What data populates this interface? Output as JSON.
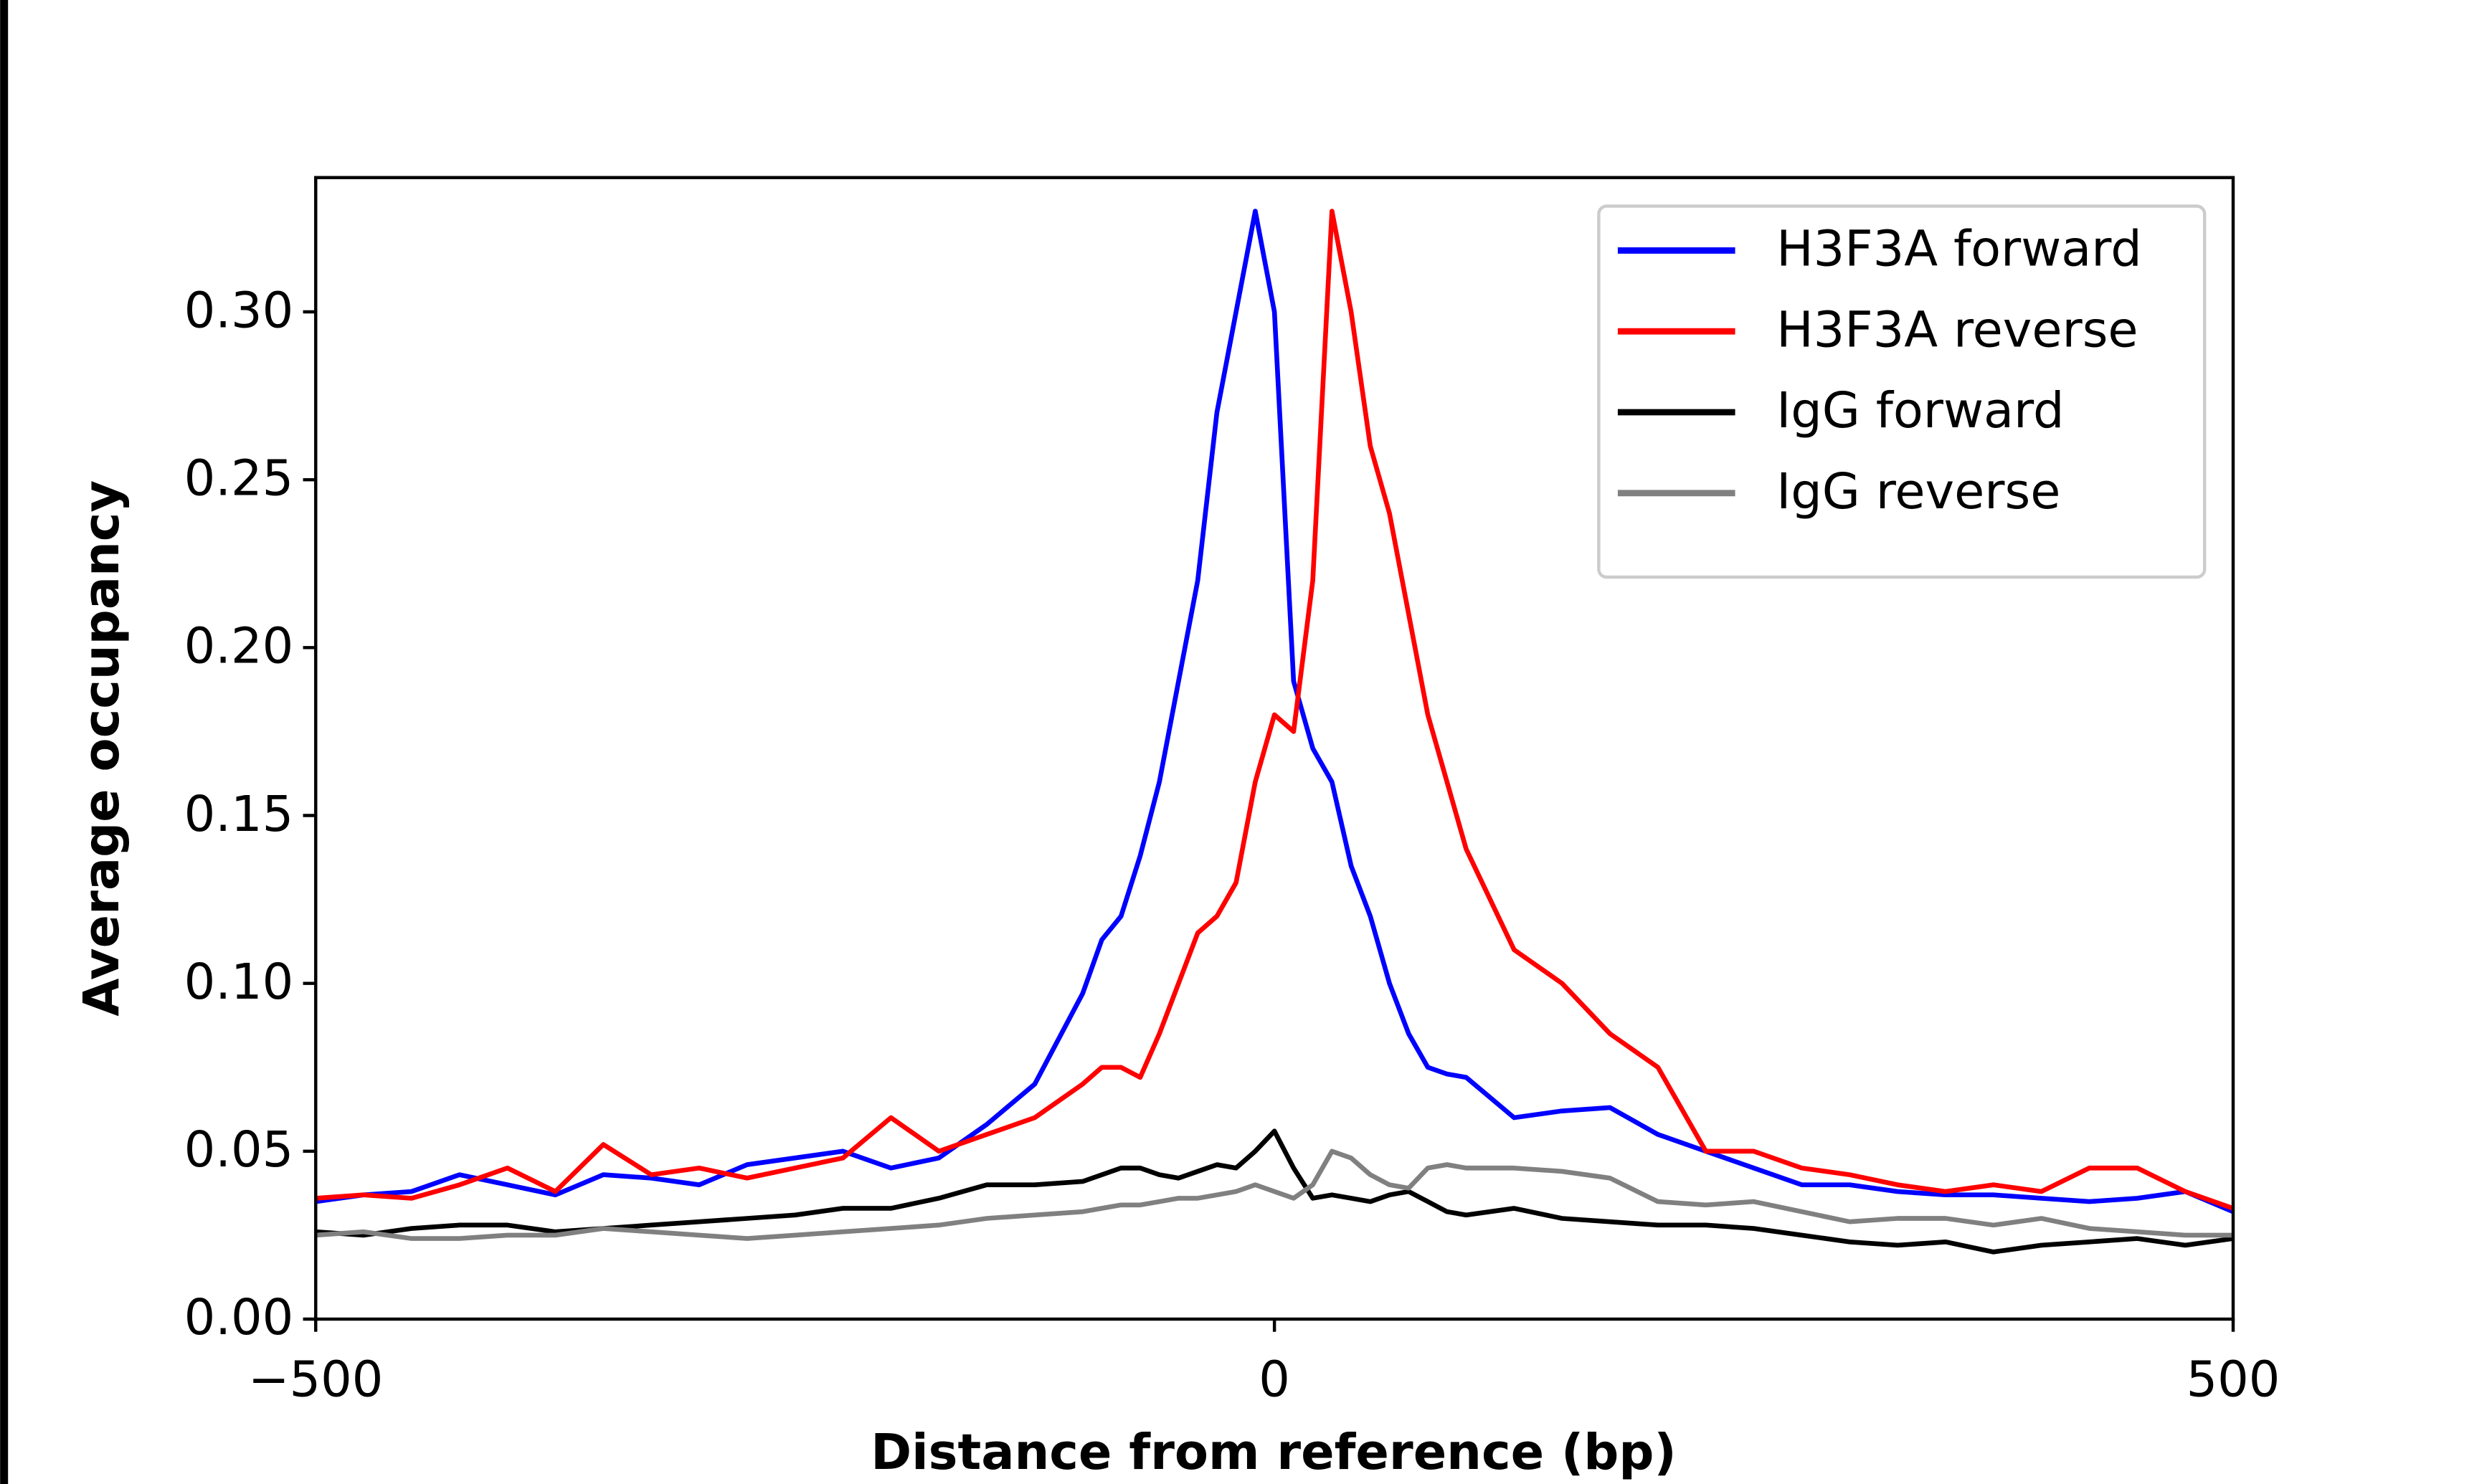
{
  "chart_data": {
    "type": "line",
    "xlabel": "Distance from reference (bp)",
    "ylabel": "Average occupancy",
    "x": [
      -500,
      -475,
      -450,
      -425,
      -400,
      -375,
      -350,
      -325,
      -300,
      -275,
      -250,
      -225,
      -200,
      -175,
      -150,
      -125,
      -100,
      -90,
      -80,
      -70,
      -60,
      -50,
      -40,
      -30,
      -20,
      -10,
      0,
      10,
      20,
      30,
      40,
      50,
      60,
      70,
      80,
      90,
      100,
      125,
      150,
      175,
      200,
      225,
      250,
      275,
      300,
      325,
      350,
      375,
      400,
      425,
      450,
      475,
      500
    ],
    "series": [
      {
        "name": "H3F3A forward",
        "color": "#0000ff",
        "values": [
          0.035,
          0.037,
          0.038,
          0.043,
          0.04,
          0.037,
          0.043,
          0.042,
          0.04,
          0.046,
          0.048,
          0.05,
          0.045,
          0.048,
          0.058,
          0.07,
          0.097,
          0.113,
          0.12,
          0.138,
          0.16,
          0.19,
          0.22,
          0.27,
          0.3,
          0.33,
          0.3,
          0.19,
          0.17,
          0.16,
          0.135,
          0.12,
          0.1,
          0.085,
          0.075,
          0.073,
          0.072,
          0.06,
          0.062,
          0.063,
          0.055,
          0.05,
          0.045,
          0.04,
          0.04,
          0.038,
          0.037,
          0.037,
          0.036,
          0.035,
          0.036,
          0.038,
          0.032
        ]
      },
      {
        "name": "H3F3A reverse",
        "color": "#ff0000",
        "values": [
          0.036,
          0.037,
          0.036,
          0.04,
          0.045,
          0.038,
          0.052,
          0.043,
          0.045,
          0.042,
          0.045,
          0.048,
          0.06,
          0.05,
          0.055,
          0.06,
          0.07,
          0.075,
          0.075,
          0.072,
          0.085,
          0.1,
          0.115,
          0.12,
          0.13,
          0.16,
          0.18,
          0.175,
          0.22,
          0.33,
          0.3,
          0.26,
          0.24,
          0.21,
          0.18,
          0.16,
          0.14,
          0.11,
          0.1,
          0.085,
          0.075,
          0.05,
          0.05,
          0.045,
          0.043,
          0.04,
          0.038,
          0.04,
          0.038,
          0.045,
          0.045,
          0.038,
          0.033
        ]
      },
      {
        "name": "IgG forward",
        "color": "#000000",
        "values": [
          0.026,
          0.025,
          0.027,
          0.028,
          0.028,
          0.026,
          0.027,
          0.028,
          0.029,
          0.03,
          0.031,
          0.033,
          0.033,
          0.036,
          0.04,
          0.04,
          0.041,
          0.043,
          0.045,
          0.045,
          0.043,
          0.042,
          0.044,
          0.046,
          0.045,
          0.05,
          0.056,
          0.045,
          0.036,
          0.037,
          0.036,
          0.035,
          0.037,
          0.038,
          0.035,
          0.032,
          0.031,
          0.033,
          0.03,
          0.029,
          0.028,
          0.028,
          0.027,
          0.025,
          0.023,
          0.022,
          0.023,
          0.02,
          0.022,
          0.023,
          0.024,
          0.022,
          0.024
        ]
      },
      {
        "name": "IgG reverse",
        "color": "#808080",
        "values": [
          0.025,
          0.026,
          0.024,
          0.024,
          0.025,
          0.025,
          0.027,
          0.026,
          0.025,
          0.024,
          0.025,
          0.026,
          0.027,
          0.028,
          0.03,
          0.031,
          0.032,
          0.033,
          0.034,
          0.034,
          0.035,
          0.036,
          0.036,
          0.037,
          0.038,
          0.04,
          0.038,
          0.036,
          0.04,
          0.05,
          0.048,
          0.043,
          0.04,
          0.039,
          0.045,
          0.046,
          0.045,
          0.045,
          0.044,
          0.042,
          0.035,
          0.034,
          0.035,
          0.032,
          0.029,
          0.03,
          0.03,
          0.028,
          0.03,
          0.027,
          0.026,
          0.025,
          0.025
        ]
      }
    ],
    "xlim": [
      -500,
      500
    ],
    "xticks": [
      {
        "value": -500,
        "label": "−500"
      },
      0,
      500
    ],
    "ylim": [
      0,
      0.34
    ],
    "yticks": [
      {
        "value": 0,
        "label": "0.00"
      },
      0.05,
      {
        "value": 0.1,
        "label": "0.10"
      },
      0.15,
      {
        "value": 0.2,
        "label": "0.20"
      },
      0.25,
      {
        "value": 0.3,
        "label": "0.30"
      }
    ],
    "grid": false,
    "legend": "upper right"
  }
}
